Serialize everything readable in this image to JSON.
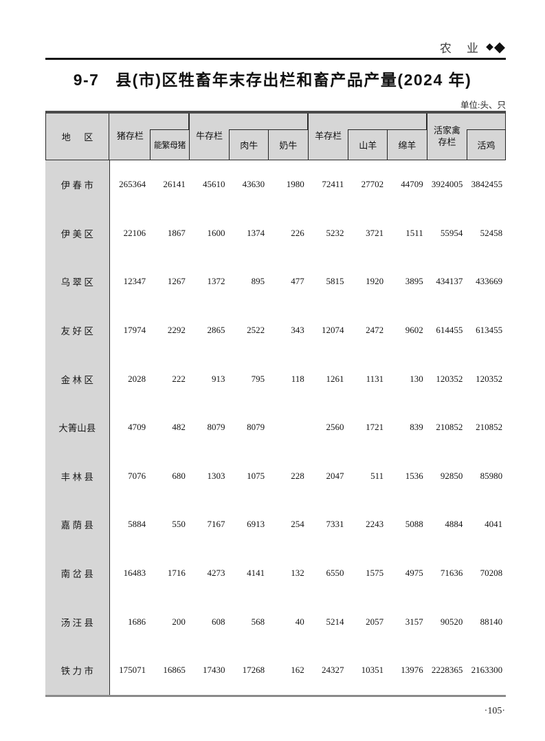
{
  "running_head": {
    "section_label": "农 业",
    "diamond_icon_small": "◆",
    "diamond_icon_big": "◆"
  },
  "title": "9-7   县(市)区牲畜年末存出栏和畜产品产量(2024 年)",
  "unit_note": "单位:头、只",
  "table": {
    "header": {
      "region": "地      区",
      "pig_group": "猪存栏",
      "sow_box": "能繁母猪",
      "cattle_group": "牛存栏",
      "beef_box": "肉牛",
      "dairy_box": "奶牛",
      "sheep_group": "羊存栏",
      "goat_box": "山羊",
      "ewe_box": "绵羊",
      "poultry_group": "活家禽\n存栏",
      "chicken_box": "活鸡"
    },
    "columns": [
      "猪存栏",
      "能繁母猪",
      "牛存栏",
      "肉牛",
      "奶牛",
      "羊存栏",
      "山羊",
      "绵羊",
      "活家禽存栏",
      "活鸡"
    ],
    "rows": [
      {
        "region": "伊 春 市",
        "values": [
          "265364",
          "26141",
          "45610",
          "43630",
          "1980",
          "72411",
          "27702",
          "44709",
          "3924005",
          "3842455"
        ]
      },
      {
        "region": "伊 美 区",
        "values": [
          "22106",
          "1867",
          "1600",
          "1374",
          "226",
          "5232",
          "3721",
          "1511",
          "55954",
          "52458"
        ]
      },
      {
        "region": "乌 翠 区",
        "values": [
          "12347",
          "1267",
          "1372",
          "895",
          "477",
          "5815",
          "1920",
          "3895",
          "434137",
          "433669"
        ]
      },
      {
        "region": "友 好 区",
        "values": [
          "17974",
          "2292",
          "2865",
          "2522",
          "343",
          "12074",
          "2472",
          "9602",
          "614455",
          "613455"
        ]
      },
      {
        "region": "金 林 区",
        "values": [
          "2028",
          "222",
          "913",
          "795",
          "118",
          "1261",
          "1131",
          "130",
          "120352",
          "120352"
        ]
      },
      {
        "region": "大箐山县",
        "values": [
          "4709",
          "482",
          "8079",
          "8079",
          "",
          "2560",
          "1721",
          "839",
          "210852",
          "210852"
        ]
      },
      {
        "region": "丰 林 县",
        "values": [
          "7076",
          "680",
          "1303",
          "1075",
          "228",
          "2047",
          "511",
          "1536",
          "92850",
          "85980"
        ]
      },
      {
        "region": "嘉 荫 县",
        "values": [
          "5884",
          "550",
          "7167",
          "6913",
          "254",
          "7331",
          "2243",
          "5088",
          "4884",
          "4041"
        ]
      },
      {
        "region": "南 岔 县",
        "values": [
          "16483",
          "1716",
          "4273",
          "4141",
          "132",
          "6550",
          "1575",
          "4975",
          "71636",
          "70208"
        ]
      },
      {
        "region": "汤 汪 县",
        "values": [
          "1686",
          "200",
          "608",
          "568",
          "40",
          "5214",
          "2057",
          "3157",
          "90520",
          "88140"
        ]
      },
      {
        "region": "铁 力 市",
        "values": [
          "175071",
          "16865",
          "17430",
          "17268",
          "162",
          "24327",
          "10351",
          "13976",
          "2228365",
          "2163300"
        ]
      }
    ]
  },
  "page_number": "·105·"
}
